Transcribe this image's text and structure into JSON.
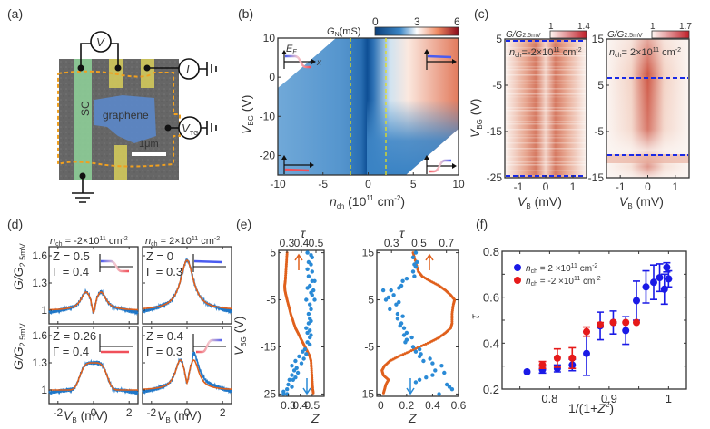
{
  "figure": {
    "panel_labels": [
      "(a)",
      "(b)",
      "(c)",
      "(d)",
      "(e)",
      "(f)"
    ]
  },
  "panel_a": {
    "labels": {
      "sc": "SC",
      "graphene": "graphene",
      "scale": "1μm",
      "voltmeter": "V",
      "current": "I",
      "topgate": "V",
      "topgate_sub": "TG"
    },
    "colors": {
      "sc": "#8fd39a",
      "graphene": "#5b87c9",
      "contacts": "#d8cf5a",
      "outline": "#f0a020",
      "substrate": "#6b6b6b"
    }
  },
  "chart_data": [
    {
      "id": "b",
      "type": "heatmap",
      "title": "",
      "xlabel": "n_ch (10^11 cm^-2)",
      "ylabel": "V_BG (V)",
      "xlim": [
        -10,
        10
      ],
      "ylim": [
        -25,
        10
      ],
      "xticks": [
        -10,
        -5,
        0,
        5,
        10
      ],
      "yticks": [
        -20,
        -10,
        0,
        10
      ],
      "colorbar": {
        "label": "G_N(mS)",
        "ticks": [
          0,
          3,
          6
        ],
        "range": [
          0,
          6
        ],
        "colors": [
          "#0b3f7a",
          "#2f7cc0",
          "#ffffff",
          "#ef8a62",
          "#8b0a1a"
        ]
      },
      "dashed_lines_x": [
        -2,
        2
      ],
      "insets": [
        "top-left: E_F vs x step down",
        "top-right: flat blue",
        "bottom-left: flat red",
        "bottom-right: step up"
      ]
    },
    {
      "id": "c-left",
      "type": "heatmap",
      "xlabel": "V_B (mV)",
      "ylabel": "V_BG (V)",
      "xlim": [
        -1.5,
        1.5
      ],
      "ylim": [
        -25,
        5
      ],
      "xticks": [
        -1,
        0,
        1
      ],
      "yticks": [
        5,
        -5,
        -15,
        -25
      ],
      "annotation": "n_ch=-2×10^11 cm^-2",
      "colorbar": {
        "label": "G/G2.5mV",
        "ticks": [
          1,
          1.4
        ]
      },
      "dashed_lines_y": [
        5,
        -25
      ]
    },
    {
      "id": "c-right",
      "type": "heatmap",
      "xlabel": "V_B (mV)",
      "ylabel": "",
      "xlim": [
        -1.5,
        1.5
      ],
      "ylim": [
        -15,
        15
      ],
      "xticks": [
        -1,
        0,
        1
      ],
      "yticks": [
        15,
        5,
        -5,
        -15
      ],
      "annotation": "n_ch= 2×10^11 cm^-2",
      "colorbar": {
        "label": "G/G2.5mV",
        "ticks": [
          1,
          1.7
        ]
      },
      "dashed_lines_y": [
        7,
        -10
      ]
    },
    {
      "id": "d",
      "type": "line",
      "xlabel": "V_B (mV)",
      "ylabel": "G/G2.5mV",
      "xlim": [
        -2.5,
        2.5
      ],
      "ylim": [
        0.85,
        1.7
      ],
      "xticks": [
        -2,
        0,
        2
      ],
      "yticks": [
        1,
        1.3,
        1.6
      ],
      "column_titles": [
        "n_ch = -2×10^11 cm^-2",
        "n_ch = 2×10^11 cm^-2"
      ],
      "subplots": [
        {
          "Z": "0.5",
          "Gamma": "0.4",
          "shape": "double-peak",
          "peak": 1.2,
          "dip": 1.08,
          "peak_x": 0.42
        },
        {
          "Z": "0",
          "Gamma": "0.3",
          "shape": "single-peak",
          "peak": 1.55,
          "peak_x": 0
        },
        {
          "Z": "0.26",
          "Gamma": "0.4",
          "shape": "broad-peak",
          "peak": 1.3,
          "peak_x": 0
        },
        {
          "Z": "0.4",
          "Gamma": "0.3",
          "shape": "double-peak",
          "peak": 1.33,
          "dip": 1.25,
          "peak_x": 0.38
        }
      ],
      "series_colors": {
        "data": "#1f77c8",
        "fit": "#e0601c"
      }
    },
    {
      "id": "e-left",
      "type": "scatter",
      "xlabel": "Z",
      "top_xlabel": "τ",
      "ylabel": "V_BG (V)",
      "xlim": [
        0.22,
        0.6
      ],
      "ylim": [
        -25.5,
        5.5
      ],
      "xticks": [
        0.3,
        0.4,
        0.5
      ],
      "top_xticks": [
        0.3,
        0.4,
        0.5
      ],
      "yticks": [
        5,
        -5,
        -15,
        -25
      ],
      "tau_curve": [
        [
          0.29,
          5
        ],
        [
          0.285,
          3
        ],
        [
          0.28,
          1
        ],
        [
          0.275,
          -1
        ],
        [
          0.27,
          -2
        ],
        [
          0.272,
          -3
        ],
        [
          0.28,
          -4
        ],
        [
          0.29,
          -5
        ],
        [
          0.305,
          -6.5
        ],
        [
          0.32,
          -8
        ],
        [
          0.34,
          -9.5
        ],
        [
          0.36,
          -11
        ],
        [
          0.38,
          -12
        ],
        [
          0.4,
          -13
        ],
        [
          0.42,
          -14
        ],
        [
          0.44,
          -15
        ],
        [
          0.46,
          -16
        ],
        [
          0.48,
          -17
        ],
        [
          0.49,
          -18
        ],
        [
          0.495,
          -20
        ],
        [
          0.5,
          -22
        ],
        [
          0.505,
          -24
        ],
        [
          0.51,
          -25
        ]
      ],
      "Z_points": [
        [
          0.46,
          5
        ],
        [
          0.49,
          4.5
        ],
        [
          0.5,
          4
        ],
        [
          0.47,
          3
        ],
        [
          0.49,
          2.5
        ],
        [
          0.46,
          1.5
        ],
        [
          0.5,
          1
        ],
        [
          0.47,
          0
        ],
        [
          0.5,
          -1
        ],
        [
          0.52,
          -1
        ],
        [
          0.48,
          -2
        ],
        [
          0.46,
          -2.5
        ],
        [
          0.51,
          -3
        ],
        [
          0.49,
          -3.5
        ],
        [
          0.5,
          -4
        ],
        [
          0.52,
          -5
        ],
        [
          0.45,
          -5
        ],
        [
          0.48,
          -6
        ],
        [
          0.49,
          -7
        ],
        [
          0.47,
          -8
        ],
        [
          0.48,
          -9
        ],
        [
          0.49,
          -9.5
        ],
        [
          0.47,
          -10
        ],
        [
          0.45,
          -11
        ],
        [
          0.48,
          -11.5
        ],
        [
          0.46,
          -12
        ],
        [
          0.49,
          -12.5
        ],
        [
          0.48,
          -13
        ],
        [
          0.46,
          -14
        ],
        [
          0.48,
          -14.5
        ],
        [
          0.44,
          -15.5
        ],
        [
          0.42,
          -16
        ],
        [
          0.45,
          -16.5
        ],
        [
          0.39,
          -17
        ],
        [
          0.43,
          -17.5
        ],
        [
          0.36,
          -18
        ],
        [
          0.41,
          -18.5
        ],
        [
          0.33,
          -19
        ],
        [
          0.37,
          -19.5
        ],
        [
          0.35,
          -20
        ],
        [
          0.38,
          -20.5
        ],
        [
          0.33,
          -21
        ],
        [
          0.36,
          -21.5
        ],
        [
          0.31,
          -22
        ],
        [
          0.34,
          -22
        ],
        [
          0.3,
          -23
        ],
        [
          0.33,
          -23.5
        ],
        [
          0.29,
          -24
        ],
        [
          0.26,
          -24.5
        ],
        [
          0.26,
          -25
        ],
        [
          0.29,
          -25
        ]
      ],
      "arrows": {
        "tau": "up, orange",
        "Z": "down, blue"
      }
    },
    {
      "id": "e-right",
      "type": "scatter",
      "xlabel": "Z",
      "top_xlabel": "τ",
      "ylabel": "",
      "xlim": [
        -0.03,
        0.6
      ],
      "ylim": [
        -15.5,
        15.5
      ],
      "xticks": [
        0,
        0.2,
        0.4,
        0.6
      ],
      "top_xticks": [
        0.3,
        0.5,
        0.7
      ],
      "yticks": [
        15,
        5,
        -5,
        -15
      ],
      "tau_curve": [
        [
          0.25,
          15
        ],
        [
          0.27,
          13
        ],
        [
          0.29,
          11
        ],
        [
          0.32,
          10
        ],
        [
          0.38,
          9
        ],
        [
          0.45,
          8
        ],
        [
          0.5,
          7
        ],
        [
          0.54,
          6
        ],
        [
          0.57,
          5
        ],
        [
          0.56,
          4
        ],
        [
          0.55,
          2
        ],
        [
          0.55,
          0
        ],
        [
          0.54,
          -1
        ],
        [
          0.5,
          -2
        ],
        [
          0.45,
          -3
        ],
        [
          0.38,
          -4
        ],
        [
          0.3,
          -5
        ],
        [
          0.22,
          -6
        ],
        [
          0.14,
          -7
        ],
        [
          0.07,
          -8
        ],
        [
          0.03,
          -9
        ],
        [
          0.01,
          -10
        ],
        [
          0.02,
          -11
        ],
        [
          0.06,
          -12
        ],
        [
          0.04,
          -13
        ],
        [
          0.03,
          -14
        ],
        [
          0.02,
          -15
        ]
      ],
      "Z_points": [
        [
          0.27,
          15
        ],
        [
          0.25,
          14
        ],
        [
          0.28,
          13
        ],
        [
          0.26,
          12.5
        ],
        [
          0.27,
          12
        ],
        [
          0.25,
          11
        ],
        [
          0.26,
          10
        ],
        [
          0.2,
          9.5
        ],
        [
          0.17,
          9
        ],
        [
          0.16,
          8
        ],
        [
          0.14,
          7.5
        ],
        [
          0.08,
          7
        ],
        [
          0.02,
          7
        ],
        [
          0.1,
          6
        ],
        [
          0.06,
          5.5
        ],
        [
          0.04,
          5
        ],
        [
          0.14,
          4.5
        ],
        [
          0.12,
          4
        ],
        [
          0.07,
          3
        ],
        [
          0.13,
          2
        ],
        [
          0.17,
          1.5
        ],
        [
          0.13,
          1
        ],
        [
          0.16,
          0
        ],
        [
          0.15,
          -0.5
        ],
        [
          0.18,
          -1
        ],
        [
          0.2,
          -2
        ],
        [
          0.18,
          -2.5
        ],
        [
          0.24,
          -3
        ],
        [
          0.2,
          -3.5
        ],
        [
          0.19,
          -4
        ],
        [
          0.25,
          -5
        ],
        [
          0.3,
          -5.5
        ],
        [
          0.27,
          -6
        ],
        [
          0.31,
          -6.5
        ],
        [
          0.3,
          -7
        ],
        [
          0.38,
          -7.5
        ],
        [
          0.33,
          -8
        ],
        [
          0.4,
          -8.5
        ],
        [
          0.47,
          -9
        ],
        [
          0.42,
          -10
        ],
        [
          0.49,
          -10.5
        ],
        [
          0.4,
          -11
        ],
        [
          0.35,
          -11.5
        ],
        [
          0.3,
          -12
        ],
        [
          0.27,
          -12.5
        ],
        [
          0.51,
          -13
        ],
        [
          0.53,
          -13.5
        ],
        [
          0.55,
          -14
        ],
        [
          0.45,
          -15
        ]
      ],
      "arrows": {
        "tau": "up, orange",
        "Z": "down, blue"
      }
    },
    {
      "id": "f",
      "type": "scatter",
      "xlabel": "1/(1+Z²)",
      "ylabel": "τ",
      "xlim": [
        0.72,
        1.03
      ],
      "ylim": [
        0.2,
        0.8
      ],
      "xticks": [
        0.8,
        0.9,
        1
      ],
      "yticks": [
        0.2,
        0.4,
        0.6,
        0.8
      ],
      "legend_position": "top-left",
      "series": [
        {
          "name": "n_ch = 2 ×10^11 cm^-2",
          "color": "#1a1ae6",
          "points": [
            [
              0.762,
              0.275,
              0
            ],
            [
              0.788,
              0.285,
              0.015
            ],
            [
              0.813,
              0.29,
              0.015
            ],
            [
              0.838,
              0.305,
              0.025
            ],
            [
              0.862,
              0.355,
              0.095
            ],
            [
              0.885,
              0.475,
              0.06
            ],
            [
              0.907,
              0.49,
              0.05
            ],
            [
              0.928,
              0.455,
              0.06
            ],
            [
              0.946,
              0.585,
              0.085
            ],
            [
              0.962,
              0.645,
              0.07
            ],
            [
              0.975,
              0.665,
              0.075
            ],
            [
              0.985,
              0.685,
              0.06
            ],
            [
              0.993,
              0.635,
              0.065
            ],
            [
              0.997,
              0.73,
              0.02
            ],
            [
              1.0,
              0.68,
              0.035
            ]
          ]
        },
        {
          "name": "n_ch = -2 ×10^11 cm^-2",
          "color": "#e61a1a",
          "points": [
            [
              0.788,
              0.305,
              0.015
            ],
            [
              0.813,
              0.335,
              0.04
            ],
            [
              0.838,
              0.335,
              0.045
            ],
            [
              0.862,
              0.45,
              0.02
            ],
            [
              0.885,
              0.48,
              0.01
            ],
            [
              0.907,
              0.49,
              0.0
            ],
            [
              0.928,
              0.49,
              0.0
            ],
            [
              0.946,
              0.49,
              0.0
            ]
          ]
        }
      ]
    }
  ]
}
